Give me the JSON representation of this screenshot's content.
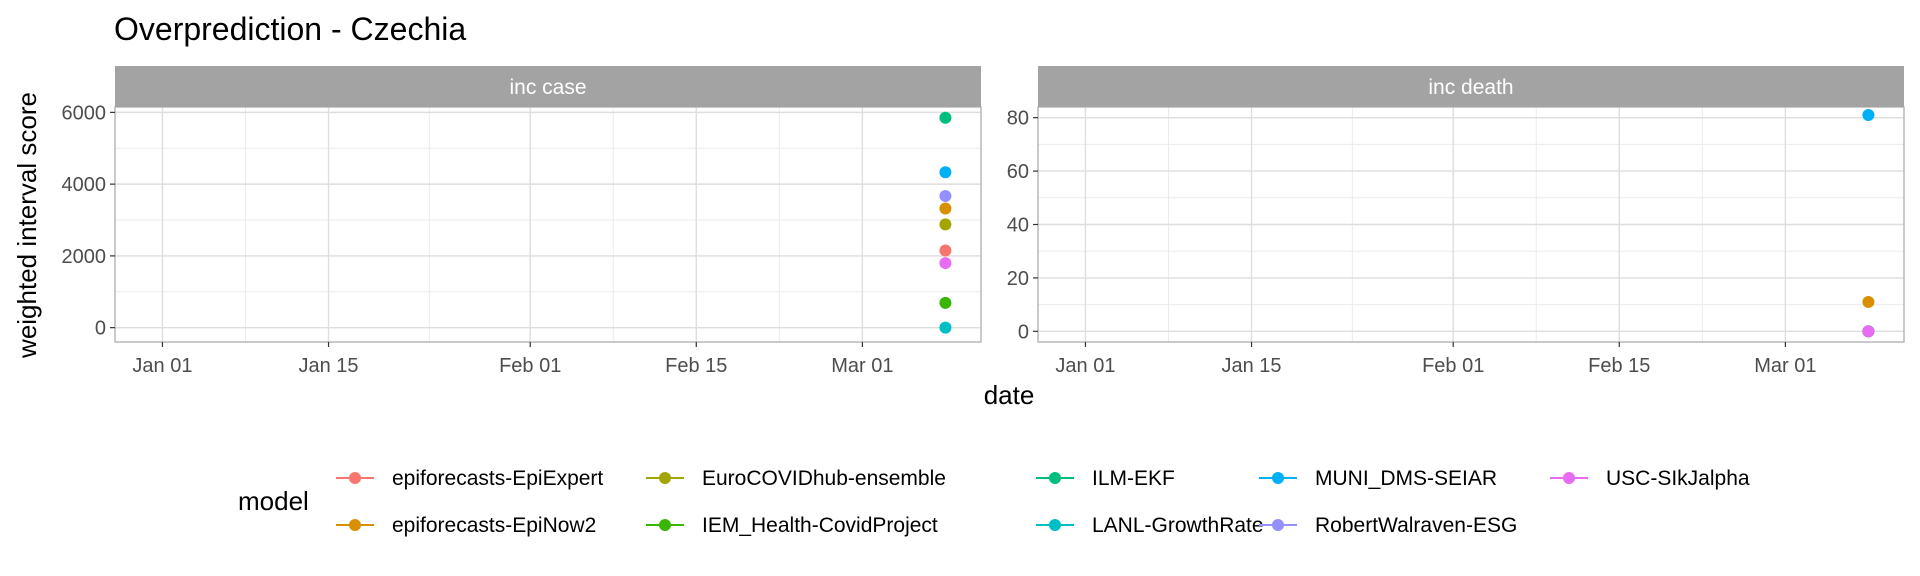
{
  "chart_data": {
    "type": "scatter",
    "title": "Overprediction - Czechia",
    "xlabel": "date",
    "ylabel": "weighted interval score",
    "x_ticks": [
      "Jan 01",
      "Jan 15",
      "Feb 01",
      "Feb 15",
      "Mar 01"
    ],
    "grid": true,
    "legend": {
      "title": "model",
      "position": "bottom",
      "entries": [
        {
          "name": "epiforecasts-EpiExpert",
          "color": "#F8766D"
        },
        {
          "name": "epiforecasts-EpiNow2",
          "color": "#D89000"
        },
        {
          "name": "EuroCOVIDhub-ensemble",
          "color": "#A3A500"
        },
        {
          "name": "IEM_Health-CovidProject",
          "color": "#39B600"
        },
        {
          "name": "ILM-EKF",
          "color": "#00BF7D"
        },
        {
          "name": "LANL-GrowthRate",
          "color": "#00BFC4"
        },
        {
          "name": "MUNI_DMS-SEIAR",
          "color": "#00B0F6"
        },
        {
          "name": "RobertWalraven-ESG",
          "color": "#9590FF"
        },
        {
          "name": "USC-SIkJalpha",
          "color": "#E76BF3"
        }
      ]
    },
    "panels": [
      {
        "strip": "inc case",
        "ylim": [
          -400,
          6150
        ],
        "y_ticks": [
          0,
          2000,
          4000,
          6000
        ],
        "series": [
          {
            "name": "epiforecasts-EpiExpert",
            "x": "2021-03-08",
            "y": 2150
          },
          {
            "name": "epiforecasts-EpiNow2",
            "x": "2021-03-08",
            "y": 3320
          },
          {
            "name": "EuroCOVIDhub-ensemble",
            "x": "2021-03-08",
            "y": 2880
          },
          {
            "name": "IEM_Health-CovidProject",
            "x": "2021-03-08",
            "y": 690
          },
          {
            "name": "ILM-EKF",
            "x": "2021-03-08",
            "y": 5850
          },
          {
            "name": "LANL-GrowthRate",
            "x": "2021-03-08",
            "y": 0
          },
          {
            "name": "MUNI_DMS-SEIAR",
            "x": "2021-03-08",
            "y": 4330
          },
          {
            "name": "RobertWalraven-ESG",
            "x": "2021-03-08",
            "y": 3670
          },
          {
            "name": "USC-SIkJalpha",
            "x": "2021-03-08",
            "y": 1800
          }
        ]
      },
      {
        "strip": "inc death",
        "ylim": [
          -4,
          84
        ],
        "y_ticks": [
          0,
          20,
          40,
          60,
          80
        ],
        "series": [
          {
            "name": "epiforecasts-EpiExpert",
            "x": "2021-03-08",
            "y": 0
          },
          {
            "name": "epiforecasts-EpiNow2",
            "x": "2021-03-08",
            "y": 11
          },
          {
            "name": "EuroCOVIDhub-ensemble",
            "x": "2021-03-08",
            "y": 0
          },
          {
            "name": "IEM_Health-CovidProject",
            "x": "2021-03-08",
            "y": 0
          },
          {
            "name": "ILM-EKF",
            "x": "2021-03-08",
            "y": 0
          },
          {
            "name": "LANL-GrowthRate",
            "x": "2021-03-08",
            "y": 0
          },
          {
            "name": "MUNI_DMS-SEIAR",
            "x": "2021-03-08",
            "y": 81
          },
          {
            "name": "RobertWalraven-ESG",
            "x": "2021-03-08",
            "y": 0
          },
          {
            "name": "USC-SIkJalpha",
            "x": "2021-03-08",
            "y": 0
          }
        ]
      }
    ]
  }
}
